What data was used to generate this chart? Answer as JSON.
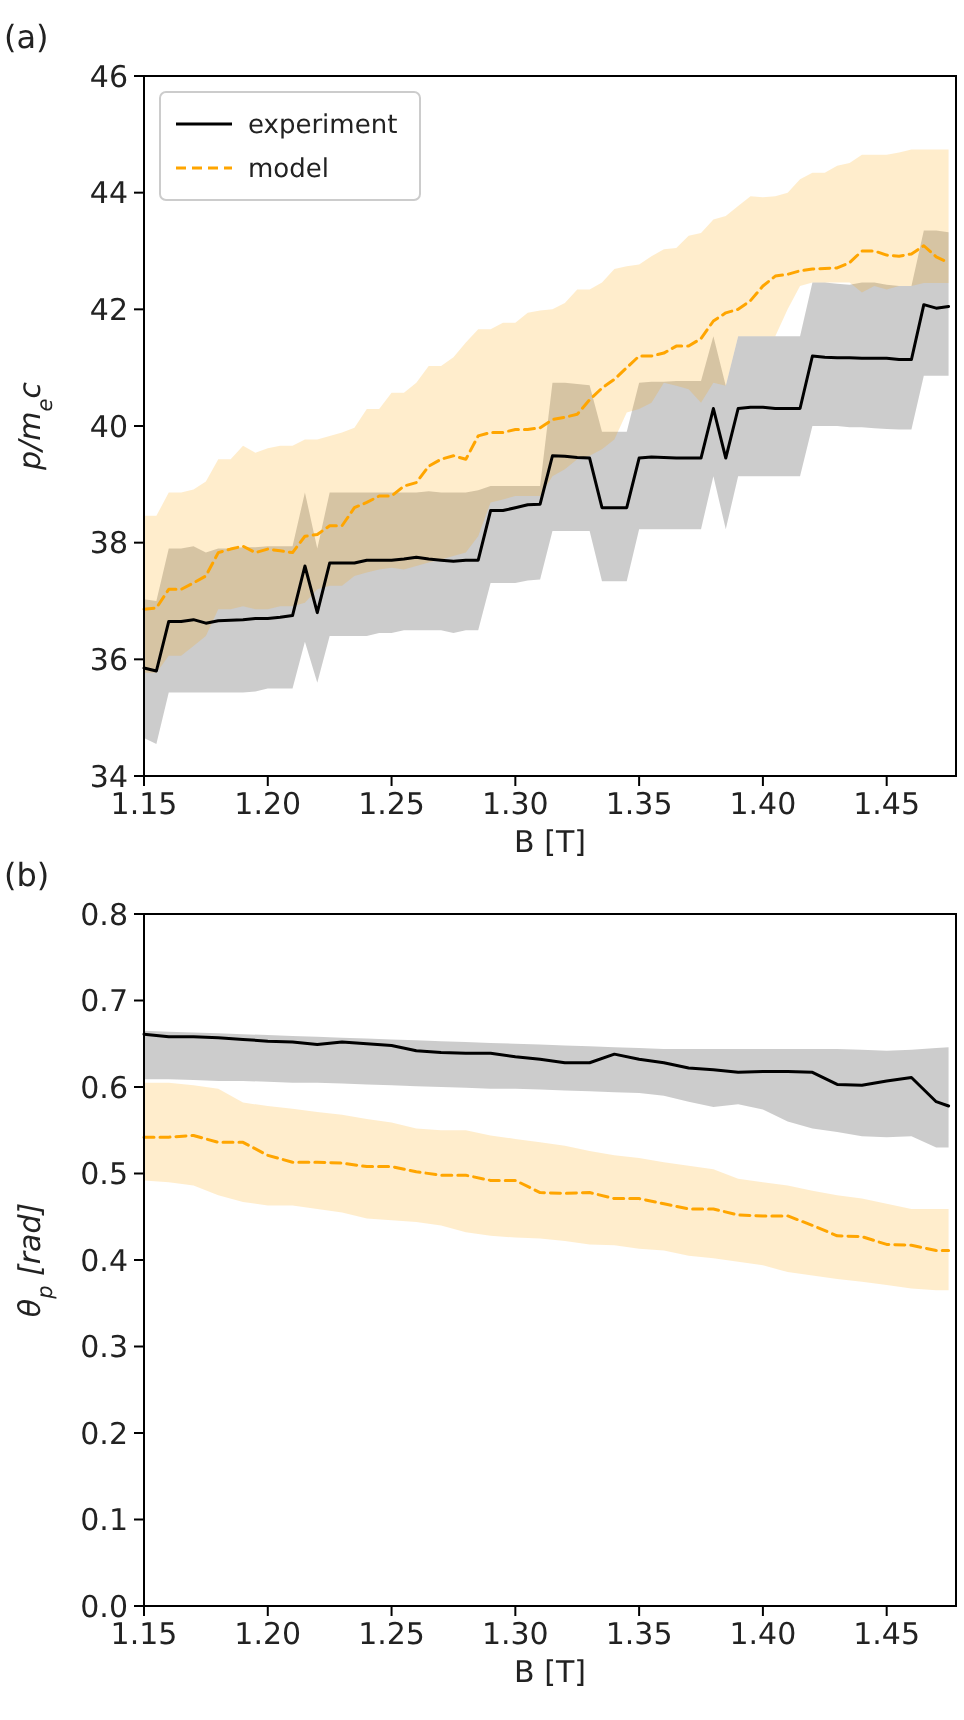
{
  "chart_data": [
    {
      "type": "line",
      "title": "(a)",
      "xlabel": "B [T]",
      "ylabel": "p/m$_{e}$c",
      "xlim": [
        1.15,
        1.478
      ],
      "ylim": [
        34,
        46
      ],
      "xticks": [
        1.15,
        {
          "value": 1.2,
          "label": "1.20"
        },
        1.25,
        {
          "value": 1.3,
          "label": "1.30"
        },
        1.35,
        {
          "value": 1.4,
          "label": "1.40"
        },
        1.45
      ],
      "yticks": [
        34,
        36,
        38,
        40,
        42,
        44,
        46
      ],
      "legend": "top left",
      "x": [
        1.15,
        1.155,
        1.16,
        1.165,
        1.17,
        1.175,
        1.18,
        1.185,
        1.19,
        1.195,
        1.2,
        1.205,
        1.21,
        1.215,
        1.22,
        1.225,
        1.23,
        1.235,
        1.24,
        1.245,
        1.25,
        1.255,
        1.26,
        1.265,
        1.27,
        1.275,
        1.28,
        1.285,
        1.29,
        1.295,
        1.3,
        1.305,
        1.31,
        1.315,
        1.32,
        1.325,
        1.33,
        1.335,
        1.34,
        1.345,
        1.35,
        1.355,
        1.36,
        1.365,
        1.37,
        1.375,
        1.38,
        1.385,
        1.39,
        1.395,
        1.4,
        1.405,
        1.41,
        1.415,
        1.42,
        1.425,
        1.43,
        1.435,
        1.44,
        1.445,
        1.45,
        1.455,
        1.46,
        1.465,
        1.47,
        1.475
      ],
      "series": [
        {
          "name": "experiment",
          "color": "#000000",
          "line_style": "solid",
          "values": [
            35.85,
            35.8,
            36.65,
            36.65,
            36.68,
            36.62,
            36.66,
            36.67,
            36.68,
            36.7,
            36.7,
            36.72,
            36.75,
            37.6,
            36.8,
            37.65,
            37.65,
            37.65,
            37.7,
            37.7,
            37.7,
            37.72,
            37.75,
            37.72,
            37.7,
            37.68,
            37.7,
            37.7,
            38.55,
            38.55,
            38.6,
            38.65,
            38.66,
            39.49,
            39.48,
            39.46,
            39.45,
            38.6,
            38.6,
            38.6,
            39.45,
            39.47,
            39.46,
            39.45,
            39.45,
            39.45,
            40.3,
            39.45,
            40.3,
            40.32,
            40.32,
            40.3,
            40.3,
            40.3,
            41.2,
            41.18,
            41.17,
            41.17,
            41.16,
            41.16,
            41.16,
            41.14,
            41.14,
            42.08,
            42.02,
            42.05
          ],
          "lower": [
            34.65,
            34.55,
            35.43,
            35.43,
            35.43,
            35.43,
            35.43,
            35.43,
            35.43,
            35.45,
            35.5,
            35.5,
            35.5,
            36.3,
            35.6,
            36.4,
            36.4,
            36.4,
            36.4,
            36.45,
            36.45,
            36.5,
            36.5,
            36.5,
            36.5,
            36.45,
            36.5,
            36.5,
            37.31,
            37.31,
            37.31,
            37.35,
            37.37,
            38.2,
            38.2,
            38.2,
            38.2,
            37.34,
            37.34,
            37.34,
            38.23,
            38.23,
            38.23,
            38.23,
            38.23,
            38.23,
            39.14,
            38.23,
            39.14,
            39.14,
            39.14,
            39.14,
            39.14,
            39.14,
            40.0,
            40.0,
            40.0,
            39.98,
            39.98,
            39.96,
            39.95,
            39.94,
            39.94,
            40.86,
            40.86,
            40.86
          ],
          "upper": [
            37.03,
            37.0,
            37.9,
            37.9,
            37.94,
            37.83,
            37.9,
            37.9,
            37.92,
            37.92,
            37.94,
            37.94,
            37.94,
            38.86,
            37.9,
            38.86,
            38.86,
            38.86,
            38.86,
            38.86,
            38.86,
            38.86,
            38.86,
            38.88,
            38.86,
            38.86,
            38.86,
            38.9,
            38.97,
            38.97,
            38.97,
            38.97,
            38.97,
            40.74,
            40.74,
            40.72,
            40.7,
            39.9,
            39.9,
            39.9,
            40.74,
            40.76,
            40.76,
            40.77,
            40.77,
            40.77,
            41.54,
            40.69,
            41.54,
            41.54,
            41.54,
            41.54,
            41.54,
            41.54,
            42.46,
            42.46,
            42.44,
            42.42,
            42.46,
            42.46,
            42.42,
            42.4,
            42.4,
            43.35,
            43.35,
            43.32
          ]
        },
        {
          "name": "model",
          "color": "#ffa500",
          "line_style": "dashed",
          "values": [
            36.86,
            36.88,
            37.2,
            37.2,
            37.31,
            37.43,
            37.83,
            37.89,
            37.94,
            37.83,
            37.89,
            37.86,
            37.83,
            38.11,
            38.14,
            38.29,
            38.29,
            38.6,
            38.69,
            38.8,
            38.8,
            38.97,
            39.03,
            39.31,
            39.43,
            39.49,
            39.43,
            39.83,
            39.89,
            39.89,
            39.94,
            39.94,
            39.97,
            40.11,
            40.15,
            40.2,
            40.45,
            40.65,
            40.8,
            41.0,
            41.2,
            41.2,
            41.25,
            41.37,
            41.37,
            41.5,
            41.8,
            41.94,
            42.0,
            42.15,
            42.4,
            42.57,
            42.6,
            42.66,
            42.69,
            42.7,
            42.71,
            42.8,
            43.0,
            43.0,
            42.93,
            42.91,
            42.95,
            43.09,
            42.9,
            42.8
          ],
          "lower": [
            35.77,
            35.77,
            36.06,
            36.06,
            36.23,
            36.4,
            36.86,
            36.86,
            36.91,
            36.86,
            36.86,
            36.91,
            36.91,
            36.97,
            37.2,
            37.26,
            37.26,
            37.43,
            37.49,
            37.54,
            37.57,
            37.54,
            37.6,
            37.66,
            37.71,
            37.77,
            37.83,
            38.11,
            38.69,
            38.74,
            38.8,
            38.8,
            38.8,
            39.14,
            39.26,
            39.43,
            39.49,
            39.6,
            39.77,
            40.23,
            40.29,
            40.4,
            40.74,
            40.69,
            40.63,
            40.4,
            40.74,
            40.69,
            41.54,
            41.54,
            41.54,
            41.54,
            42.0,
            42.4,
            42.46,
            42.46,
            42.46,
            42.46,
            42.29,
            42.4,
            42.34,
            42.4,
            42.4,
            42.45,
            42.45,
            42.45
          ],
          "upper": [
            38.46,
            38.46,
            38.86,
            38.86,
            38.91,
            39.05,
            39.43,
            39.43,
            39.66,
            39.54,
            39.62,
            39.66,
            39.66,
            39.77,
            39.77,
            39.83,
            39.89,
            39.97,
            40.29,
            40.29,
            40.57,
            40.57,
            40.74,
            41.03,
            41.03,
            41.18,
            41.43,
            41.66,
            41.66,
            41.77,
            41.77,
            41.94,
            41.98,
            42.0,
            42.11,
            42.34,
            42.34,
            42.46,
            42.69,
            42.74,
            42.77,
            42.91,
            43.03,
            43.05,
            43.26,
            43.31,
            43.54,
            43.6,
            43.77,
            43.94,
            43.92,
            43.94,
            44.0,
            44.23,
            44.34,
            44.34,
            44.46,
            44.51,
            44.65,
            44.65,
            44.65,
            44.69,
            44.74,
            44.74,
            44.74,
            44.74
          ]
        }
      ]
    },
    {
      "type": "line",
      "title": "(b)",
      "xlabel": "B [T]",
      "ylabel": "θ$_{p}$ [rad]",
      "xlim": [
        1.15,
        1.478
      ],
      "ylim": [
        0,
        0.8
      ],
      "xticks": [
        1.15,
        {
          "value": 1.2,
          "label": "1.20"
        },
        1.25,
        {
          "value": 1.3,
          "label": "1.30"
        },
        1.35,
        {
          "value": 1.4,
          "label": "1.40"
        },
        1.45
      ],
      "yticks": [
        {
          "value": 0,
          "label": "0.0"
        },
        0.1,
        0.2,
        0.3,
        0.4,
        0.5,
        0.6,
        0.7,
        0.8
      ],
      "x": [
        1.15,
        1.16,
        1.17,
        1.18,
        1.19,
        1.2,
        1.21,
        1.22,
        1.23,
        1.24,
        1.25,
        1.26,
        1.27,
        1.28,
        1.29,
        1.3,
        1.31,
        1.32,
        1.33,
        1.34,
        1.35,
        1.36,
        1.37,
        1.38,
        1.39,
        1.4,
        1.41,
        1.42,
        1.43,
        1.44,
        1.45,
        1.46,
        1.47,
        1.475
      ],
      "series": [
        {
          "color": "#000000",
          "line_style": "solid",
          "values": [
            0.661,
            0.658,
            0.658,
            0.657,
            0.655,
            0.653,
            0.652,
            0.649,
            0.652,
            0.65,
            0.648,
            0.642,
            0.64,
            0.639,
            0.639,
            0.635,
            0.632,
            0.628,
            0.628,
            0.638,
            0.632,
            0.628,
            0.622,
            0.62,
            0.617,
            0.618,
            0.618,
            0.617,
            0.603,
            0.602,
            0.607,
            0.611,
            0.583,
            0.578
          ],
          "lower": [
            0.609,
            0.609,
            0.608,
            0.607,
            0.607,
            0.606,
            0.605,
            0.605,
            0.604,
            0.603,
            0.602,
            0.601,
            0.6,
            0.599,
            0.598,
            0.598,
            0.597,
            0.596,
            0.595,
            0.594,
            0.593,
            0.59,
            0.583,
            0.577,
            0.58,
            0.574,
            0.56,
            0.552,
            0.548,
            0.543,
            0.542,
            0.543,
            0.53,
            0.53
          ],
          "upper": [
            0.665,
            0.664,
            0.663,
            0.662,
            0.661,
            0.66,
            0.659,
            0.658,
            0.657,
            0.656,
            0.655,
            0.654,
            0.653,
            0.652,
            0.651,
            0.65,
            0.649,
            0.648,
            0.647,
            0.646,
            0.645,
            0.644,
            0.644,
            0.644,
            0.644,
            0.644,
            0.644,
            0.644,
            0.644,
            0.643,
            0.642,
            0.643,
            0.645,
            0.646
          ]
        },
        {
          "color": "#ffa500",
          "line_style": "dashed",
          "values": [
            0.542,
            0.542,
            0.544,
            0.536,
            0.536,
            0.521,
            0.513,
            0.513,
            0.512,
            0.508,
            0.508,
            0.502,
            0.498,
            0.498,
            0.492,
            0.492,
            0.478,
            0.477,
            0.478,
            0.471,
            0.471,
            0.465,
            0.459,
            0.459,
            0.452,
            0.451,
            0.451,
            0.44,
            0.428,
            0.427,
            0.418,
            0.417,
            0.411,
            0.411
          ],
          "lower": [
            0.492,
            0.49,
            0.486,
            0.475,
            0.467,
            0.463,
            0.463,
            0.459,
            0.455,
            0.448,
            0.446,
            0.444,
            0.44,
            0.432,
            0.428,
            0.426,
            0.425,
            0.422,
            0.418,
            0.417,
            0.413,
            0.411,
            0.405,
            0.402,
            0.398,
            0.394,
            0.386,
            0.382,
            0.378,
            0.375,
            0.371,
            0.367,
            0.365,
            0.365
          ],
          "upper": [
            0.605,
            0.605,
            0.602,
            0.598,
            0.582,
            0.578,
            0.575,
            0.571,
            0.568,
            0.563,
            0.559,
            0.552,
            0.55,
            0.55,
            0.544,
            0.54,
            0.536,
            0.532,
            0.526,
            0.521,
            0.518,
            0.513,
            0.509,
            0.505,
            0.494,
            0.49,
            0.486,
            0.48,
            0.475,
            0.471,
            0.465,
            0.459,
            0.459,
            0.459
          ]
        }
      ]
    }
  ]
}
